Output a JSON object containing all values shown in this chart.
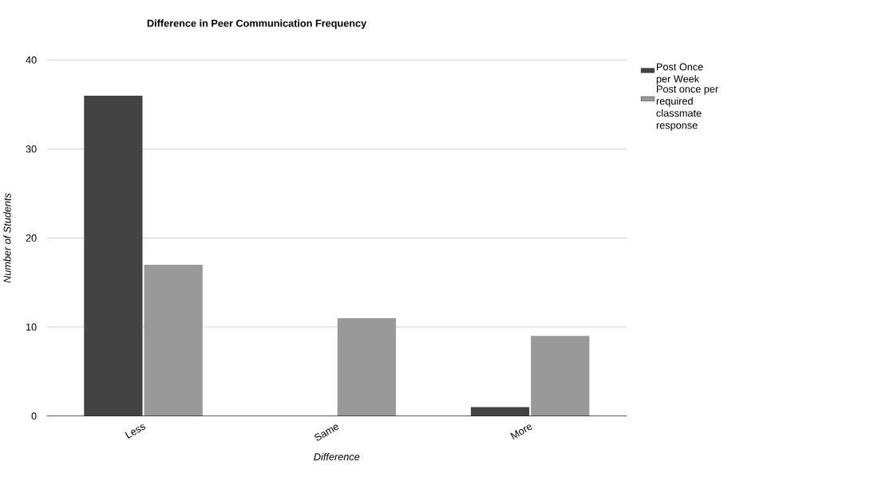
{
  "chart_data": {
    "type": "bar",
    "title": "Difference in Peer Communication Frequency",
    "xlabel": "Difference",
    "ylabel": "Number of Students",
    "categories": [
      "Less",
      "Same",
      "More"
    ],
    "series": [
      {
        "name": "Post Once per Week",
        "color": "#434343",
        "values": [
          36,
          0,
          1
        ]
      },
      {
        "name": "Post once per required classmate response",
        "color": "#999999",
        "values": [
          17,
          11,
          9
        ]
      }
    ],
    "ylim": [
      0,
      40
    ],
    "yticks": [
      0,
      10,
      20,
      30,
      40
    ],
    "grid": "y",
    "legend": "top right"
  }
}
